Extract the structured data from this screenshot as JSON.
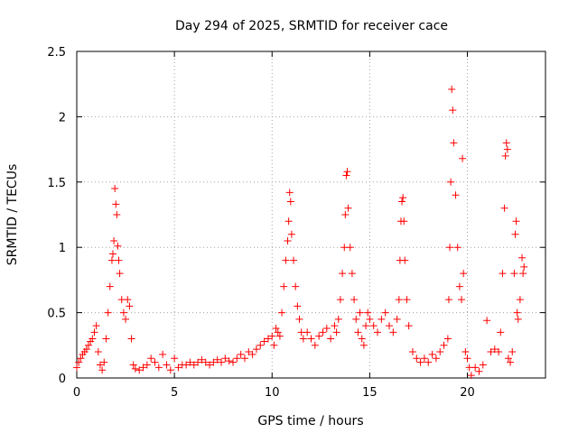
{
  "chart_data": {
    "type": "scatter",
    "title": "Day 294 of 2025, SRMTID for receiver cace",
    "xlabel": "GPS time / hours",
    "ylabel": "SRMTID / TECUs",
    "xlim": [
      0,
      24
    ],
    "ylim": [
      0,
      2.5
    ],
    "xticks": [
      0,
      5,
      10,
      15,
      20
    ],
    "xtick_labels": [
      "0",
      "5",
      "10",
      "15",
      "20"
    ],
    "yticks": [
      0,
      0.5,
      1,
      1.5,
      2,
      2.5
    ],
    "ytick_labels": [
      "0",
      "0.5",
      "1",
      "1.5",
      "2",
      "2.5"
    ],
    "grid": true,
    "marker": "+",
    "color": "#ff0000",
    "series": [
      {
        "name": "SRMTID",
        "points": [
          [
            0.0,
            0.08
          ],
          [
            0.1,
            0.12
          ],
          [
            0.2,
            0.15
          ],
          [
            0.3,
            0.18
          ],
          [
            0.4,
            0.2
          ],
          [
            0.5,
            0.22
          ],
          [
            0.6,
            0.25
          ],
          [
            0.7,
            0.28
          ],
          [
            0.8,
            0.3
          ],
          [
            0.9,
            0.35
          ],
          [
            1.0,
            0.4
          ],
          [
            1.1,
            0.2
          ],
          [
            1.2,
            0.1
          ],
          [
            1.3,
            0.06
          ],
          [
            1.4,
            0.12
          ],
          [
            1.5,
            0.3
          ],
          [
            1.6,
            0.5
          ],
          [
            1.7,
            0.7
          ],
          [
            1.8,
            0.9
          ],
          [
            1.85,
            0.95
          ],
          [
            1.9,
            1.05
          ],
          [
            1.95,
            1.45
          ],
          [
            2.0,
            1.33
          ],
          [
            2.05,
            1.25
          ],
          [
            2.1,
            1.01
          ],
          [
            2.15,
            0.9
          ],
          [
            2.2,
            0.8
          ],
          [
            2.3,
            0.6
          ],
          [
            2.4,
            0.5
          ],
          [
            2.5,
            0.45
          ],
          [
            2.6,
            0.6
          ],
          [
            2.7,
            0.55
          ],
          [
            2.8,
            0.3
          ],
          [
            2.9,
            0.1
          ],
          [
            3.0,
            0.07
          ],
          [
            3.2,
            0.06
          ],
          [
            3.4,
            0.08
          ],
          [
            3.6,
            0.1
          ],
          [
            3.8,
            0.15
          ],
          [
            4.0,
            0.12
          ],
          [
            4.2,
            0.08
          ],
          [
            4.4,
            0.18
          ],
          [
            4.6,
            0.1
          ],
          [
            4.8,
            0.06
          ],
          [
            5.0,
            0.15
          ],
          [
            5.2,
            0.08
          ],
          [
            5.4,
            0.1
          ],
          [
            5.6,
            0.1
          ],
          [
            5.8,
            0.12
          ],
          [
            6.0,
            0.1
          ],
          [
            6.2,
            0.12
          ],
          [
            6.4,
            0.14
          ],
          [
            6.6,
            0.12
          ],
          [
            6.8,
            0.1
          ],
          [
            7.0,
            0.12
          ],
          [
            7.2,
            0.14
          ],
          [
            7.4,
            0.12
          ],
          [
            7.6,
            0.15
          ],
          [
            7.8,
            0.13
          ],
          [
            8.0,
            0.12
          ],
          [
            8.2,
            0.15
          ],
          [
            8.4,
            0.18
          ],
          [
            8.6,
            0.15
          ],
          [
            8.8,
            0.2
          ],
          [
            9.0,
            0.18
          ],
          [
            9.2,
            0.22
          ],
          [
            9.4,
            0.25
          ],
          [
            9.6,
            0.28
          ],
          [
            9.8,
            0.3
          ],
          [
            10.0,
            0.32
          ],
          [
            10.1,
            0.25
          ],
          [
            10.2,
            0.38
          ],
          [
            10.3,
            0.35
          ],
          [
            10.4,
            0.32
          ],
          [
            10.5,
            0.5
          ],
          [
            10.6,
            0.7
          ],
          [
            10.7,
            0.9
          ],
          [
            10.8,
            1.05
          ],
          [
            10.85,
            1.2
          ],
          [
            10.9,
            1.42
          ],
          [
            10.95,
            1.35
          ],
          [
            11.0,
            1.1
          ],
          [
            11.1,
            0.9
          ],
          [
            11.2,
            0.7
          ],
          [
            11.3,
            0.55
          ],
          [
            11.4,
            0.45
          ],
          [
            11.5,
            0.35
          ],
          [
            11.6,
            0.3
          ],
          [
            11.8,
            0.35
          ],
          [
            12.0,
            0.3
          ],
          [
            12.2,
            0.25
          ],
          [
            12.4,
            0.32
          ],
          [
            12.6,
            0.35
          ],
          [
            12.8,
            0.38
          ],
          [
            13.0,
            0.3
          ],
          [
            13.2,
            0.4
          ],
          [
            13.3,
            0.35
          ],
          [
            13.4,
            0.45
          ],
          [
            13.5,
            0.6
          ],
          [
            13.6,
            0.8
          ],
          [
            13.7,
            1.0
          ],
          [
            13.75,
            1.25
          ],
          [
            13.8,
            1.55
          ],
          [
            13.85,
            1.58
          ],
          [
            13.9,
            1.3
          ],
          [
            14.0,
            1.0
          ],
          [
            14.1,
            0.8
          ],
          [
            14.2,
            0.6
          ],
          [
            14.3,
            0.45
          ],
          [
            14.4,
            0.35
          ],
          [
            14.5,
            0.5
          ],
          [
            14.6,
            0.3
          ],
          [
            14.7,
            0.25
          ],
          [
            14.8,
            0.4
          ],
          [
            14.9,
            0.5
          ],
          [
            15.0,
            0.45
          ],
          [
            15.2,
            0.4
          ],
          [
            15.4,
            0.35
          ],
          [
            15.6,
            0.45
          ],
          [
            15.8,
            0.5
          ],
          [
            16.0,
            0.4
          ],
          [
            16.2,
            0.35
          ],
          [
            16.4,
            0.45
          ],
          [
            16.5,
            0.6
          ],
          [
            16.55,
            0.9
          ],
          [
            16.6,
            1.2
          ],
          [
            16.65,
            1.35
          ],
          [
            16.7,
            1.38
          ],
          [
            16.75,
            1.2
          ],
          [
            16.8,
            0.9
          ],
          [
            16.9,
            0.6
          ],
          [
            17.0,
            0.4
          ],
          [
            17.2,
            0.2
          ],
          [
            17.4,
            0.15
          ],
          [
            17.6,
            0.12
          ],
          [
            17.8,
            0.15
          ],
          [
            18.0,
            0.12
          ],
          [
            18.2,
            0.18
          ],
          [
            18.4,
            0.15
          ],
          [
            18.6,
            0.2
          ],
          [
            18.8,
            0.25
          ],
          [
            19.0,
            0.3
          ],
          [
            19.05,
            0.6
          ],
          [
            19.1,
            1.0
          ],
          [
            19.15,
            1.5
          ],
          [
            19.2,
            2.21
          ],
          [
            19.25,
            2.05
          ],
          [
            19.3,
            1.8
          ],
          [
            19.4,
            1.4
          ],
          [
            19.5,
            1.0
          ],
          [
            19.6,
            0.7
          ],
          [
            19.7,
            0.6
          ],
          [
            19.75,
            1.68
          ],
          [
            19.8,
            0.8
          ],
          [
            19.9,
            0.2
          ],
          [
            20.0,
            0.15
          ],
          [
            20.1,
            0.08
          ],
          [
            20.2,
            0.02
          ],
          [
            20.4,
            0.08
          ],
          [
            20.6,
            0.05
          ],
          [
            20.8,
            0.1
          ],
          [
            21.0,
            0.44
          ],
          [
            21.2,
            0.2
          ],
          [
            21.4,
            0.22
          ],
          [
            21.6,
            0.2
          ],
          [
            21.7,
            0.35
          ],
          [
            21.8,
            0.8
          ],
          [
            21.9,
            1.3
          ],
          [
            21.95,
            1.7
          ],
          [
            22.0,
            1.8
          ],
          [
            22.05,
            1.75
          ],
          [
            22.1,
            0.15
          ],
          [
            22.2,
            0.12
          ],
          [
            22.3,
            0.2
          ],
          [
            22.4,
            0.8
          ],
          [
            22.45,
            1.1
          ],
          [
            22.5,
            1.2
          ],
          [
            22.55,
            0.5
          ],
          [
            22.6,
            0.45
          ],
          [
            22.7,
            0.6
          ],
          [
            22.8,
            0.92
          ],
          [
            22.85,
            0.8
          ],
          [
            22.9,
            0.85
          ]
        ]
      }
    ]
  }
}
